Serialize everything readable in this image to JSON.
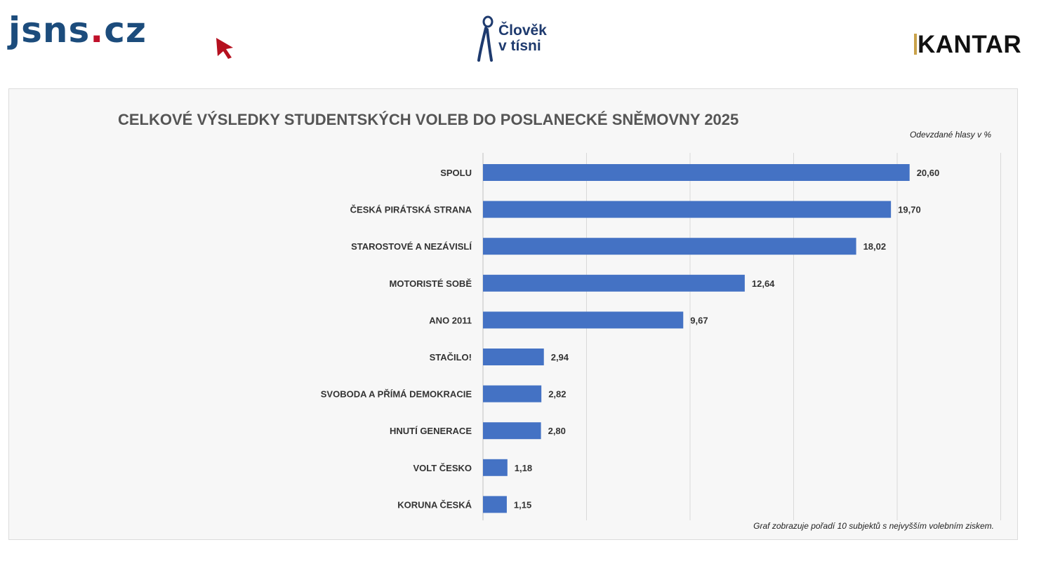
{
  "logos": {
    "jsns": "jsns.cz",
    "clovek_line1": "Člověk",
    "clovek_line2": "v tísni",
    "kantar": "KANTAR"
  },
  "chart_data": {
    "type": "bar",
    "orientation": "horizontal",
    "title": "CELKOVÉ VÝSLEDKY STUDENTSKÝCH VOLEB DO POSLANECKÉ SNĚMOVNY 2025",
    "unit_label": "Odevzdané hlasy v %",
    "note": "Graf zobrazuje pořadí 10 subjektů s nejvyšším volebním ziskem.",
    "categories": [
      "SPOLU",
      "ČESKÁ PIRÁTSKÁ STRANA",
      "STAROSTOVÉ A NEZÁVISLÍ",
      "MOTORISTÉ SOBĚ",
      "ANO 2011",
      "STAČILO!",
      "SVOBODA A PŘÍMÁ DEMOKRACIE",
      "HNUTÍ GENERACE",
      "VOLT ČESKO",
      "KORUNA ČESKÁ"
    ],
    "values": [
      20.6,
      19.7,
      18.02,
      12.64,
      9.67,
      2.94,
      2.82,
      2.8,
      1.18,
      1.15
    ],
    "value_labels": [
      "20,60",
      "19,70",
      "18,02",
      "12,64",
      "9,67",
      "2,94",
      "2,82",
      "2,80",
      "1,18",
      "1,15"
    ],
    "xlim": [
      0,
      25
    ],
    "gridlines": [
      0,
      5,
      10,
      15,
      20,
      25
    ],
    "bar_color": "#4472c4"
  }
}
